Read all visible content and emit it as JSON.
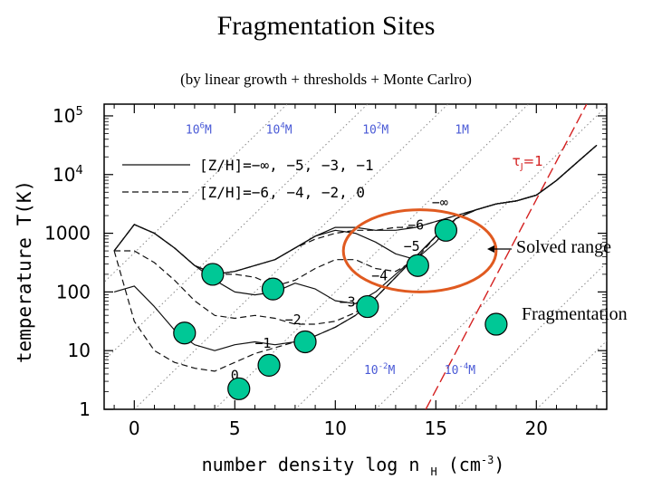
{
  "slide": {
    "title": "Fragmentation Sites",
    "subtitle": "(by linear growth + thresholds + Monte Carlro)",
    "annotation_solved": "Solved range",
    "annotation_fragmentation": "Fragmentation",
    "marker_color": "#00c896",
    "circle_color": "#e05a20"
  },
  "chart_data": {
    "type": "line",
    "xlabel": "number density log n",
    "xlabel_sub": "H",
    "xlabel_unit": "(cm",
    "xlabel_unit_sup": "-3",
    "xlabel_close": ")",
    "ylabel": "temperature T(K)",
    "xlim": [
      -1.5,
      23.5
    ],
    "ylim_log10": [
      0,
      5.2
    ],
    "xticks": [
      {
        "v": 0,
        "label": "0"
      },
      {
        "v": 5,
        "label": "5"
      },
      {
        "v": 10,
        "label": "10"
      },
      {
        "v": 15,
        "label": "15"
      },
      {
        "v": 20,
        "label": "20"
      }
    ],
    "yticks": [
      {
        "v": 0,
        "label": "1",
        "exp": ""
      },
      {
        "v": 1,
        "label": "10",
        "exp": ""
      },
      {
        "v": 2,
        "label": "100",
        "exp": ""
      },
      {
        "v": 3,
        "label": "1000",
        "exp": ""
      },
      {
        "v": 4,
        "label": "10",
        "exp": "4"
      },
      {
        "v": 5,
        "label": "10",
        "exp": "5"
      }
    ],
    "legend": [
      {
        "style": "solid",
        "label": "[Z/H]=−∞, −5, −3, −1"
      },
      {
        "style": "dashed",
        "label": "[Z/H]=−6, −4, −2, 0"
      }
    ],
    "jeans_mass_labels": [
      {
        "text": "10",
        "exp": "6",
        "unit": "M",
        "x": 3.2,
        "y": 4.7
      },
      {
        "text": "10",
        "exp": "4",
        "unit": "M",
        "x": 7.2,
        "y": 4.7
      },
      {
        "text": "10",
        "exp": "2",
        "unit": "M",
        "x": 12.0,
        "y": 4.7
      },
      {
        "text": "1",
        "exp": "",
        "unit": "M",
        "x": 16.3,
        "y": 4.7
      },
      {
        "text": "10",
        "exp": "-2",
        "unit": "M",
        "x": 12.2,
        "y": 0.6
      },
      {
        "text": "10",
        "exp": "-4",
        "unit": "M",
        "x": 16.2,
        "y": 0.6
      }
    ],
    "tau_label": {
      "text": "τ",
      "sub": "J",
      "rest": "=1",
      "x": 18.8,
      "y": 4.15
    },
    "curve_labels": [
      {
        "text": "−∞",
        "x": 15.2,
        "y": 3.45
      },
      {
        "text": "−6",
        "x": 14.0,
        "y": 3.06
      },
      {
        "text": "−5",
        "x": 13.8,
        "y": 2.7
      },
      {
        "text": "−4",
        "x": 12.2,
        "y": 2.2
      },
      {
        "text": "−3",
        "x": 10.6,
        "y": 1.75
      },
      {
        "text": "−2",
        "x": 7.9,
        "y": 1.45
      },
      {
        "text": "−1",
        "x": 6.4,
        "y": 1.05
      },
      {
        "text": "0",
        "x": 5.0,
        "y": 0.5
      }
    ],
    "series": [
      {
        "style": "solid",
        "x": [
          -1,
          0,
          1,
          2,
          3,
          4,
          5,
          6,
          7,
          8,
          9,
          10,
          11,
          12,
          13,
          14,
          15,
          16,
          17,
          18,
          19,
          20,
          21,
          22,
          23
        ],
        "y": [
          2.7,
          3.15,
          3.0,
          2.75,
          2.45,
          2.3,
          2.35,
          2.45,
          2.55,
          2.75,
          2.95,
          3.1,
          3.1,
          3.05,
          3.05,
          3.1,
          3.2,
          3.3,
          3.4,
          3.5,
          3.55,
          3.65,
          3.9,
          4.2,
          4.5
        ]
      },
      {
        "style": "dashed",
        "x": [
          -1,
          0,
          1,
          2,
          3,
          4,
          5,
          6,
          7,
          8,
          9,
          10,
          11,
          12,
          13,
          14,
          15,
          16,
          17,
          18,
          19,
          20,
          21,
          22,
          23
        ],
        "y": [
          2.7,
          3.15,
          3.0,
          2.75,
          2.45,
          2.3,
          2.35,
          2.45,
          2.55,
          2.75,
          2.9,
          3.0,
          3.05,
          3.05,
          3.1,
          3.1,
          3.2,
          3.3,
          3.4,
          3.5,
          3.55,
          3.65,
          3.9,
          4.2,
          4.5
        ]
      },
      {
        "style": "solid",
        "x": [
          -1,
          0,
          1,
          2,
          3,
          4,
          5,
          6,
          7,
          8,
          9,
          10,
          11,
          12,
          13,
          14,
          15,
          16,
          17,
          18,
          19,
          20,
          21,
          22,
          23
        ],
        "y": [
          2.7,
          3.15,
          3.0,
          2.75,
          2.45,
          2.3,
          2.35,
          2.45,
          2.55,
          2.75,
          2.95,
          3.05,
          3.0,
          2.85,
          2.65,
          2.55,
          2.85,
          3.25,
          3.4,
          3.5,
          3.55,
          3.65,
          3.9,
          4.2,
          4.5
        ]
      },
      {
        "style": "dashed",
        "x": [
          -1,
          0,
          1,
          2,
          3,
          4,
          5,
          6,
          7,
          8,
          9,
          10,
          11,
          12,
          13,
          14,
          15,
          16,
          17,
          18,
          19,
          20,
          21,
          22,
          23
        ],
        "y": [
          2.7,
          3.15,
          3.0,
          2.75,
          2.45,
          2.3,
          2.3,
          2.25,
          2.1,
          2.2,
          2.4,
          2.55,
          2.55,
          2.4,
          2.35,
          2.55,
          2.95,
          3.25,
          3.4,
          3.5,
          3.55,
          3.65,
          3.9,
          4.2,
          4.5
        ]
      },
      {
        "style": "solid",
        "x": [
          -1,
          0,
          1,
          2,
          3,
          4,
          5,
          6,
          7,
          8,
          9,
          10,
          11,
          12,
          13,
          14,
          15,
          16,
          17,
          18,
          19,
          20,
          21,
          22,
          23
        ],
        "y": [
          2.7,
          3.15,
          3.0,
          2.75,
          2.45,
          2.2,
          2.0,
          1.95,
          2.0,
          2.15,
          2.05,
          1.85,
          1.8,
          2.0,
          2.3,
          2.6,
          2.95,
          3.25,
          3.4,
          3.5,
          3.55,
          3.65,
          3.9,
          4.2,
          4.5
        ]
      },
      {
        "style": "dashed",
        "x": [
          -1,
          0,
          1,
          2,
          3,
          4,
          5,
          6,
          7,
          8,
          9,
          10,
          11,
          12,
          13,
          14,
          15,
          16,
          17,
          18,
          19,
          20,
          21,
          22,
          23
        ],
        "y": [
          2.7,
          2.7,
          2.5,
          2.2,
          1.85,
          1.6,
          1.55,
          1.6,
          1.55,
          1.45,
          1.45,
          1.5,
          1.65,
          1.9,
          2.25,
          2.6,
          2.95,
          3.25,
          3.4,
          3.5,
          3.55,
          3.65,
          3.9,
          4.2,
          4.5
        ]
      },
      {
        "style": "solid",
        "x": [
          -1,
          0,
          1,
          2,
          3,
          4,
          5,
          6,
          7,
          8,
          9,
          10,
          11,
          12,
          13,
          14,
          15,
          16,
          17,
          18,
          19,
          20,
          21,
          22,
          23
        ],
        "y": [
          2.0,
          2.1,
          1.75,
          1.35,
          1.1,
          1.0,
          1.1,
          1.15,
          1.1,
          1.15,
          1.25,
          1.4,
          1.6,
          1.9,
          2.25,
          2.6,
          2.95,
          3.25,
          3.4,
          3.5,
          3.55,
          3.65,
          3.9,
          4.2,
          4.5
        ]
      },
      {
        "style": "dashed",
        "x": [
          -1,
          0,
          1,
          2,
          3,
          4,
          5,
          6,
          7,
          8,
          9,
          10,
          11,
          12,
          13,
          14,
          15,
          16,
          17,
          18,
          19,
          20,
          21,
          22,
          23
        ],
        "y": [
          2.7,
          1.5,
          1.0,
          0.8,
          0.7,
          0.65,
          0.8,
          0.95,
          1.05,
          1.15,
          1.25,
          1.4,
          1.6,
          1.9,
          2.25,
          2.6,
          2.95,
          3.25,
          3.4,
          3.5,
          3.55,
          3.65,
          3.9,
          4.2,
          4.5
        ]
      }
    ],
    "fragmentation_markers": [
      {
        "x": 3.9,
        "y": 2.3
      },
      {
        "x": 6.9,
        "y": 2.05
      },
      {
        "x": 2.5,
        "y": 1.3
      },
      {
        "x": 8.5,
        "y": 1.15
      },
      {
        "x": 6.7,
        "y": 0.75
      },
      {
        "x": 5.2,
        "y": 0.35
      },
      {
        "x": 11.6,
        "y": 1.75
      },
      {
        "x": 14.1,
        "y": 2.45
      },
      {
        "x": 15.5,
        "y": 3.05
      },
      {
        "x": 18.0,
        "y": 1.45
      }
    ],
    "guide_lines_x_intercepts": [
      -8,
      -4,
      0,
      4,
      8,
      12,
      16,
      20
    ],
    "jeans_line": {
      "x0": 14.5,
      "y0": 0,
      "x1": 22.5,
      "y1": 5.2
    },
    "solved_range_ellipse": {
      "cx": 14.2,
      "cy": 2.7,
      "rx": 3.8,
      "ry": 0.7
    }
  }
}
